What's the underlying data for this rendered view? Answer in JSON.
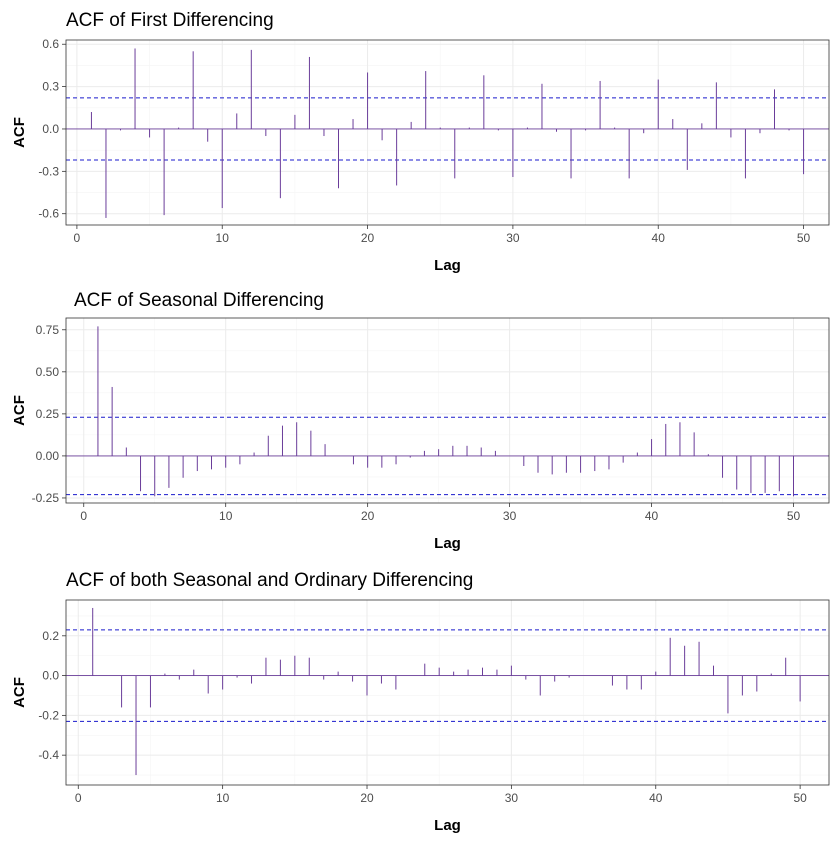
{
  "chart_data": [
    {
      "type": "bar",
      "title": "ACF of First Differencing",
      "xlabel": "Lag",
      "ylabel": "ACF",
      "xlim": [
        -0.75,
        51.75
      ],
      "ylim": [
        -0.68,
        0.63
      ],
      "xticks": [
        0,
        10,
        20,
        30,
        40,
        50
      ],
      "xtick_labels": [
        "0",
        "10",
        "20",
        "30",
        "40",
        "50"
      ],
      "yticks": [
        -0.6,
        -0.3,
        0.0,
        0.3,
        0.6
      ],
      "ytick_labels": [
        "-0.6",
        "-0.3",
        "0.0",
        "0.3",
        "0.6"
      ],
      "grid": true,
      "confidence_band": [
        0.22,
        -0.22
      ],
      "x": [
        1,
        2,
        3,
        4,
        5,
        6,
        7,
        8,
        9,
        10,
        11,
        12,
        13,
        14,
        15,
        16,
        17,
        18,
        19,
        20,
        21,
        22,
        23,
        24,
        25,
        26,
        27,
        28,
        29,
        30,
        31,
        32,
        33,
        34,
        35,
        36,
        37,
        38,
        39,
        40,
        41,
        42,
        43,
        44,
        45,
        46,
        47,
        48,
        49,
        50
      ],
      "values": [
        0.12,
        -0.63,
        -0.01,
        0.57,
        -0.06,
        -0.61,
        0.01,
        0.55,
        -0.09,
        -0.56,
        0.11,
        0.56,
        -0.05,
        -0.49,
        0.1,
        0.51,
        -0.05,
        -0.42,
        0.07,
        0.4,
        -0.08,
        -0.4,
        0.05,
        0.41,
        0.01,
        -0.35,
        0.01,
        0.38,
        -0.01,
        -0.34,
        0.01,
        0.32,
        -0.02,
        -0.35,
        -0.01,
        0.34,
        0.01,
        -0.35,
        -0.03,
        0.35,
        0.07,
        -0.29,
        0.04,
        0.33,
        -0.06,
        -0.35,
        -0.03,
        0.28,
        -0.01,
        -0.32
      ]
    },
    {
      "type": "bar",
      "title": "ACF of Seasonal Differencing",
      "xlabel": "Lag",
      "ylabel": "ACF",
      "xlim": [
        -1.25,
        52.5
      ],
      "ylim": [
        -0.28,
        0.82
      ],
      "xticks": [
        0,
        10,
        20,
        30,
        40,
        50
      ],
      "xtick_labels": [
        "0",
        "10",
        "20",
        "30",
        "40",
        "50"
      ],
      "yticks": [
        -0.25,
        0.0,
        0.25,
        0.5,
        0.75
      ],
      "ytick_labels": [
        "-0.25",
        "0.00",
        "0.25",
        "0.50",
        "0.75"
      ],
      "grid": true,
      "confidence_band": [
        0.23,
        -0.23
      ],
      "x": [
        1,
        2,
        3,
        4,
        5,
        6,
        7,
        8,
        9,
        10,
        11,
        12,
        13,
        14,
        15,
        16,
        17,
        18,
        19,
        20,
        21,
        22,
        23,
        24,
        25,
        26,
        27,
        28,
        29,
        30,
        31,
        32,
        33,
        34,
        35,
        36,
        37,
        38,
        39,
        40,
        41,
        42,
        43,
        44,
        45,
        46,
        47,
        48,
        49,
        50
      ],
      "values": [
        0.77,
        0.41,
        0.05,
        -0.21,
        -0.24,
        -0.19,
        -0.13,
        -0.09,
        -0.08,
        -0.07,
        -0.05,
        0.02,
        0.12,
        0.18,
        0.2,
        0.15,
        0.07,
        0.0,
        -0.05,
        -0.07,
        -0.07,
        -0.05,
        -0.01,
        0.03,
        0.04,
        0.06,
        0.06,
        0.05,
        0.03,
        0.0,
        -0.06,
        -0.1,
        -0.11,
        -0.1,
        -0.1,
        -0.09,
        -0.08,
        -0.04,
        0.02,
        0.1,
        0.19,
        0.2,
        0.14,
        0.01,
        -0.13,
        -0.2,
        -0.22,
        -0.22,
        -0.21,
        -0.24
      ]
    },
    {
      "type": "bar",
      "title": "ACF of both Seasonal and Ordinary Differencing",
      "xlabel": "Lag",
      "ylabel": "ACF",
      "xlim": [
        -0.85,
        52.0
      ],
      "ylim": [
        -0.55,
        0.38
      ],
      "xticks": [
        0,
        10,
        20,
        30,
        40,
        50
      ],
      "xtick_labels": [
        "0",
        "10",
        "20",
        "30",
        "40",
        "50"
      ],
      "yticks": [
        -0.4,
        -0.2,
        0.0,
        0.2
      ],
      "ytick_labels": [
        "-0.4",
        "-0.2",
        "0.0",
        "0.2"
      ],
      "grid": true,
      "confidence_band": [
        0.23,
        -0.23
      ],
      "x": [
        1,
        2,
        3,
        4,
        5,
        6,
        7,
        8,
        9,
        10,
        11,
        12,
        13,
        14,
        15,
        16,
        17,
        18,
        19,
        20,
        21,
        22,
        23,
        24,
        25,
        26,
        27,
        28,
        29,
        30,
        31,
        32,
        33,
        34,
        35,
        36,
        37,
        38,
        39,
        40,
        41,
        42,
        43,
        44,
        45,
        46,
        47,
        48,
        49,
        50
      ],
      "values": [
        0.34,
        0.0,
        -0.16,
        -0.5,
        -0.16,
        0.01,
        -0.02,
        0.03,
        -0.09,
        -0.07,
        -0.01,
        -0.04,
        0.09,
        0.08,
        0.1,
        0.09,
        -0.02,
        0.02,
        -0.03,
        -0.1,
        -0.04,
        -0.07,
        0.0,
        0.06,
        0.04,
        0.02,
        0.03,
        0.04,
        0.03,
        0.05,
        -0.02,
        -0.1,
        -0.03,
        -0.01,
        0.0,
        0.0,
        -0.05,
        -0.07,
        -0.07,
        0.02,
        0.19,
        0.15,
        0.17,
        0.05,
        -0.19,
        -0.1,
        -0.08,
        0.01,
        0.09,
        -0.13
      ]
    }
  ],
  "colors": {
    "spike": "#6a3d9a",
    "confidence_line": "#1a1acc",
    "zero_line": "#6a3d9a",
    "grid": "#ebebeb",
    "panel_border": "#333333"
  }
}
